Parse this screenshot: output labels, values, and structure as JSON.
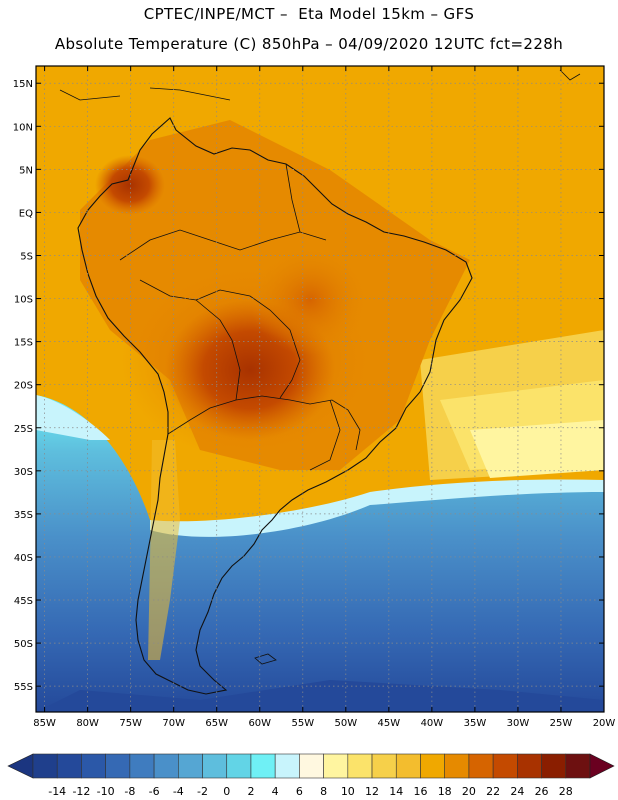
{
  "header": {
    "line1": "CPTEC/INPE/MCT –  Eta Model 15km – GFS",
    "line2": "Absolute Temperature (C) 850hPa – 04/09/2020 12UTC fct=228h"
  },
  "map": {
    "lat_labels": [
      "15N",
      "10N",
      "5N",
      "EQ",
      "5S",
      "10S",
      "15S",
      "20S",
      "25S",
      "30S",
      "35S",
      "40S",
      "45S",
      "50S",
      "55S"
    ],
    "lat_values": [
      15,
      10,
      5,
      0,
      -5,
      -10,
      -15,
      -20,
      -25,
      -30,
      -35,
      -40,
      -45,
      -50,
      -55
    ],
    "lon_labels": [
      "85W",
      "80W",
      "75W",
      "70W",
      "65W",
      "60W",
      "55W",
      "50W",
      "45W",
      "40W",
      "35W",
      "30W",
      "25W",
      "20W"
    ],
    "lon_values": [
      -85,
      -80,
      -75,
      -70,
      -65,
      -60,
      -55,
      -50,
      -45,
      -40,
      -35,
      -30,
      -25,
      -20
    ],
    "lat_range": [
      -58,
      17
    ],
    "lon_range": [
      -86,
      -20
    ],
    "ocean_color": "#f0a800",
    "land_outline_color": "#111111"
  },
  "colorbar": {
    "labels": [
      "-14",
      "-12",
      "-10",
      "-8",
      "-6",
      "-4",
      "-2",
      "0",
      "2",
      "4",
      "6",
      "8",
      "10",
      "12",
      "14",
      "16",
      "18",
      "20",
      "22",
      "24",
      "26",
      "28"
    ],
    "colors": [
      "#1f3f8c",
      "#24499a",
      "#2b58a8",
      "#3569b4",
      "#3f7cbf",
      "#4a90c9",
      "#55a6d3",
      "#5ebedd",
      "#62d4e6",
      "#6ff0f5",
      "#c8f4fc",
      "#fff8e0",
      "#fff5a0",
      "#fbe36a",
      "#f6d04a",
      "#f3bd2e",
      "#f0a800",
      "#e68a00",
      "#d66400",
      "#c44a00",
      "#a83200",
      "#8a1e00",
      "#6d1010"
    ],
    "under_color": "#1b3580",
    "over_color": "#6a0020"
  }
}
